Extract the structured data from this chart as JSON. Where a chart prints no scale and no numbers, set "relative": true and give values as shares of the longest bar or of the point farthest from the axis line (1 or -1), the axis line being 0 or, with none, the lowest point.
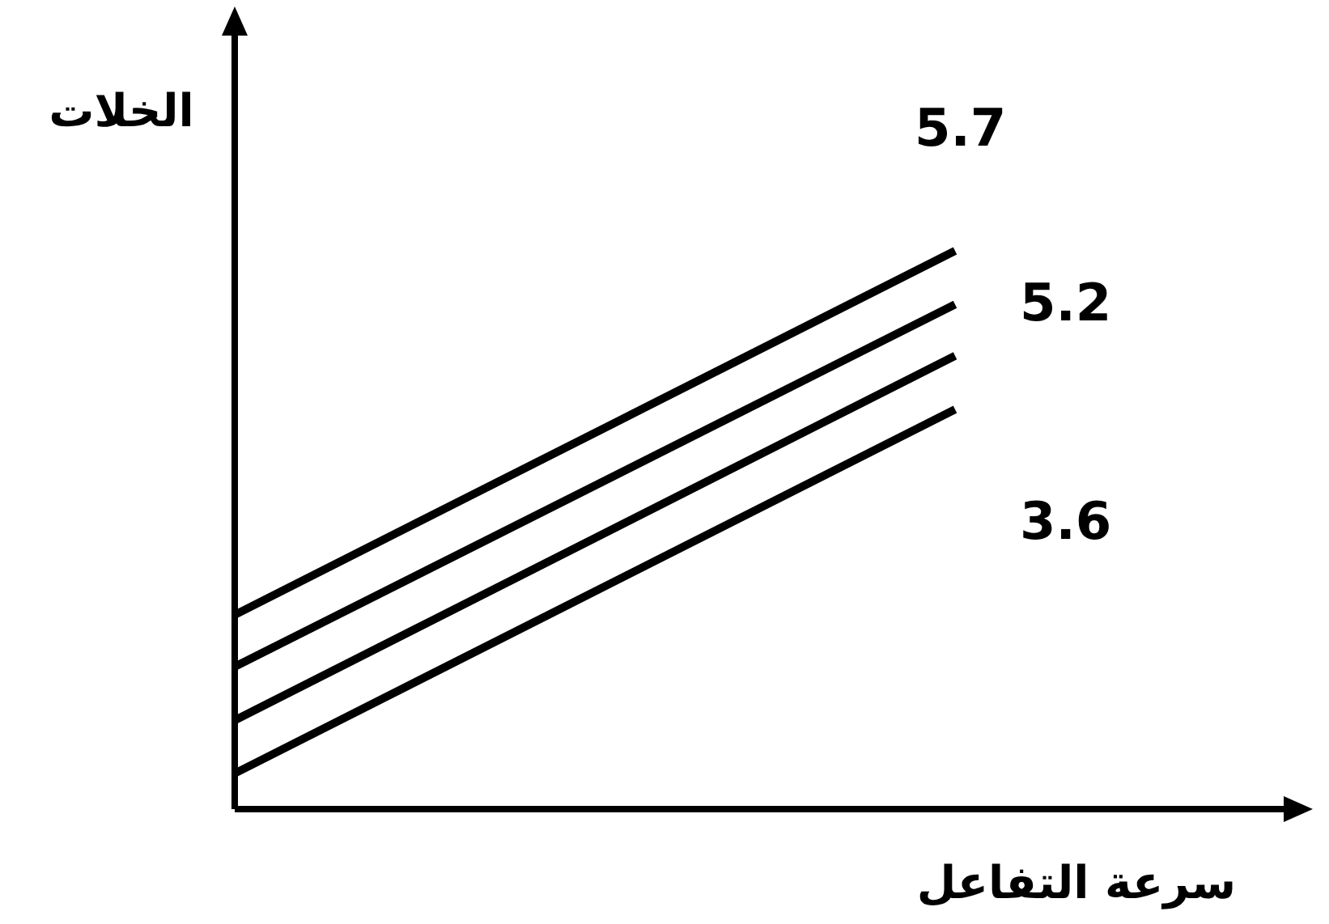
{
  "chart_data": {
    "type": "line",
    "relative": true,
    "xlabel": "سرعة التفاعل",
    "ylabel": "الخلات",
    "categories": [
      null,
      null
    ],
    "series": [
      {
        "name": "5.7",
        "color": "#000000",
        "values": [
          0.348,
          1
        ]
      },
      {
        "name": "5.2",
        "color": "#000000",
        "values": [
          0.255,
          0.904
        ]
      },
      {
        "color": "#000000",
        "values": [
          0.159,
          0.812
        ]
      },
      {
        "name": "3.6",
        "color": "#000000",
        "values": [
          0.064,
          0.716
        ]
      }
    ]
  }
}
